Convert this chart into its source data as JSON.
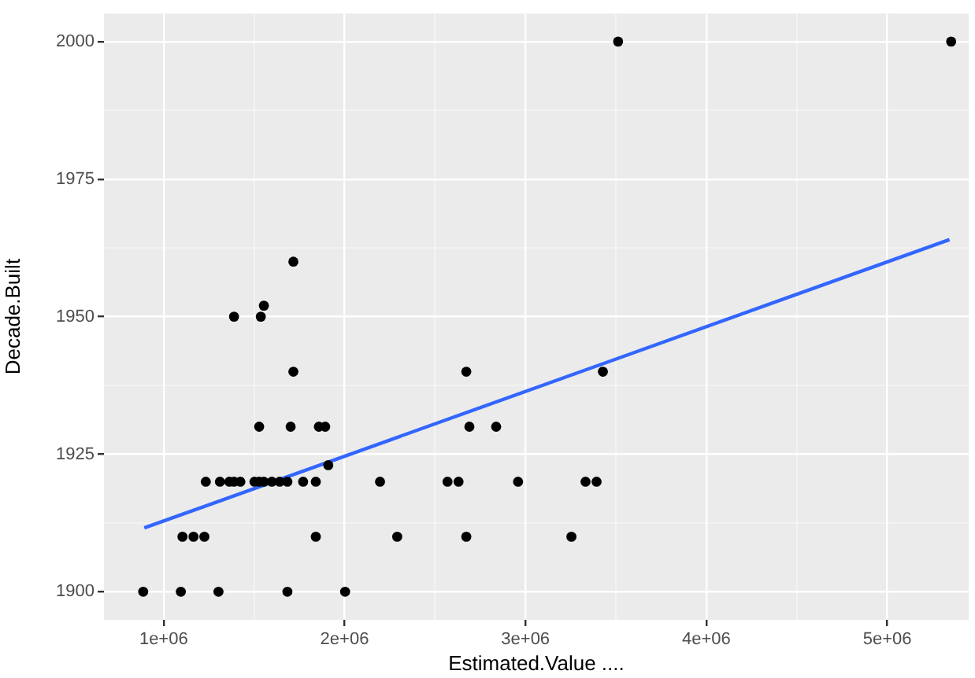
{
  "chart_data": {
    "type": "scatter",
    "xlabel": "Estimated.Value ....",
    "ylabel": "Decade.Built",
    "xlim": [
      670000,
      5450000
    ],
    "xticks": [
      {
        "value": 1000000,
        "label": "1e+06"
      },
      {
        "value": 1500000,
        "label": null
      },
      {
        "value": 2000000,
        "label": "2e+06"
      },
      {
        "value": 2500000,
        "label": null
      },
      {
        "value": 3000000,
        "label": "3e+06"
      },
      {
        "value": 3500000,
        "label": null
      },
      {
        "value": 4000000,
        "label": "4e+06"
      },
      {
        "value": 4500000,
        "label": null
      },
      {
        "value": 5000000,
        "label": "5e+06"
      }
    ],
    "ylim": [
      1894.9,
      2005.1
    ],
    "yticks": [
      1900,
      {
        "value": 1912.5,
        "label": null
      },
      1925,
      {
        "value": 1937.5,
        "label": null
      },
      1950,
      {
        "value": 1962.5,
        "label": null
      },
      1975,
      {
        "value": 1987.5,
        "label": null
      },
      2000
    ],
    "grid": true,
    "legend": false,
    "marker": "circle",
    "series": [
      {
        "color": "#000000",
        "x": [
          887000,
          1095000,
          1303000,
          1684000,
          2003000,
          1104000,
          1165000,
          1225000,
          1841000,
          2291000,
          2673000,
          3254000,
          1233000,
          1311000,
          1363000,
          1389000,
          1424000,
          1502000,
          1528000,
          1554000,
          1598000,
          1641000,
          1684000,
          1771000,
          1841000,
          2196000,
          2569000,
          2630000,
          2959000,
          3332000,
          3393000,
          1910000,
          1528000,
          1702000,
          1858000,
          1893000,
          2690000,
          2838000,
          1717000,
          2673000,
          3428000,
          1389000,
          1537000,
          1554000,
          1717000,
          3512000,
          5353000
        ],
        "values": [
          1900,
          1900,
          1900,
          1900,
          1900,
          1910,
          1910,
          1910,
          1910,
          1910,
          1910,
          1910,
          1920,
          1920,
          1920,
          1920,
          1920,
          1920,
          1920,
          1920,
          1920,
          1920,
          1920,
          1920,
          1920,
          1920,
          1920,
          1920,
          1920,
          1920,
          1920,
          1923,
          1930,
          1930,
          1930,
          1930,
          1930,
          1930,
          1940,
          1940,
          1940,
          1950,
          1950,
          1952,
          1960,
          2000,
          2000
        ]
      },
      {
        "type": "line",
        "color": "#3366ff",
        "line_style": "solid",
        "marker": "none",
        "x": [
          893000,
          5344000
        ],
        "values": [
          1911.6,
          1964.0
        ]
      }
    ]
  }
}
